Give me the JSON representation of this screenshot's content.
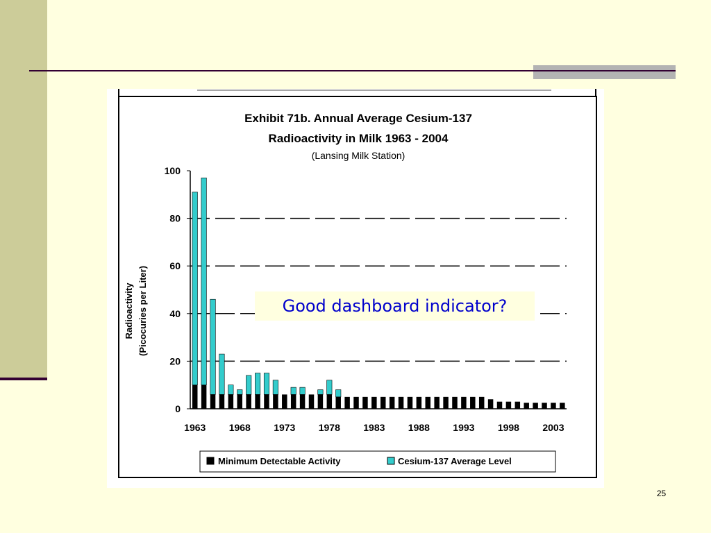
{
  "slide": {
    "overlay_text": "Good dashboard indicator?",
    "page_number": "25"
  },
  "colors": {
    "background": "#ffffe0",
    "left_band": "#cccc99",
    "rule": "#330033",
    "gray_block": "#b3b3b3",
    "overlay_text": "#0000cc",
    "mda_bar": "#000000",
    "cesium_bar": "#33cccc"
  },
  "chart_data": {
    "type": "bar",
    "stacked": true,
    "title": "Exhibit 71b.  Annual Average Cesium-137",
    "title_line2": "Radioactivity in Milk 1963 - 2004",
    "subtitle": "(Lansing Milk Station)",
    "ylabel": "Radioactivity",
    "ylabel_line2": "(Picocuries per Liter)",
    "xlabel": "",
    "ylim": [
      0,
      100
    ],
    "yticks": [
      0,
      20,
      40,
      60,
      80,
      100
    ],
    "dashed_gridlines": [
      20,
      40,
      60,
      80
    ],
    "legend_position": "bottom",
    "categories": [
      1963,
      1964,
      1965,
      1966,
      1967,
      1968,
      1969,
      1970,
      1971,
      1972,
      1973,
      1974,
      1975,
      1976,
      1977,
      1978,
      1979,
      1980,
      1981,
      1982,
      1983,
      1984,
      1985,
      1986,
      1987,
      1988,
      1989,
      1990,
      1991,
      1992,
      1993,
      1994,
      1995,
      1996,
      1997,
      1998,
      1999,
      2000,
      2001,
      2002,
      2003,
      2004
    ],
    "xtick_labels": [
      "1963",
      "1968",
      "1973",
      "1978",
      "1983",
      "1988",
      "1993",
      "1998",
      "2003"
    ],
    "series": [
      {
        "name": "Minimum Detectable Activity",
        "color": "#000000",
        "values": [
          10,
          10,
          6,
          6,
          6,
          6,
          6,
          6,
          6,
          6,
          6,
          6,
          6,
          6,
          6,
          6,
          5,
          5,
          5,
          5,
          5,
          5,
          5,
          5,
          5,
          5,
          5,
          5,
          5,
          5,
          5,
          5,
          5,
          4,
          3,
          3,
          3,
          2.5,
          2.5,
          2.5,
          2.5,
          2.5
        ]
      },
      {
        "name": "Cesium-137 Average Level",
        "color": "#33cccc",
        "values": [
          91,
          97,
          46,
          23,
          10,
          8,
          14,
          15,
          15,
          12,
          6,
          9,
          9,
          6,
          8,
          12,
          8,
          null,
          null,
          null,
          null,
          null,
          null,
          null,
          null,
          null,
          null,
          null,
          null,
          null,
          null,
          null,
          null,
          null,
          null,
          null,
          null,
          null,
          null,
          null,
          null,
          null
        ]
      }
    ]
  }
}
